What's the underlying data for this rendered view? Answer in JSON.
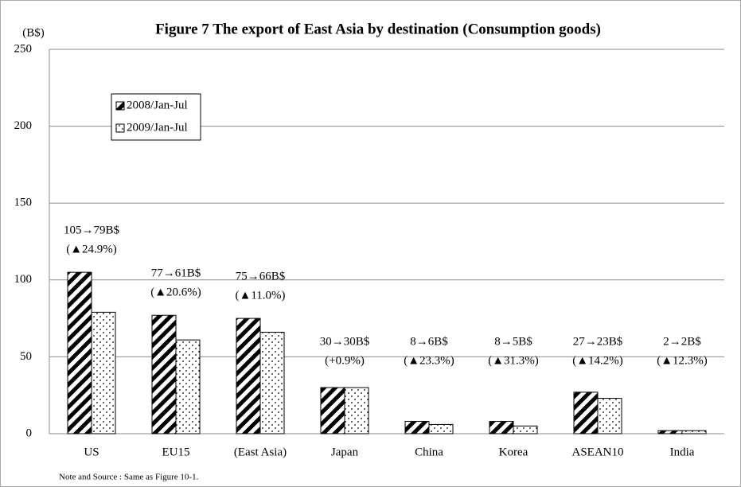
{
  "chart_data": {
    "type": "bar",
    "title": "Figure 7  The export of East Asia by destination (Consumption goods)",
    "y_label": "(B$)",
    "note": "Note and Source : Same as Figure 10-1.",
    "categories": [
      "US",
      "EU15",
      "(East Asia)",
      "Japan",
      "China",
      "Korea",
      "ASEAN10",
      "India"
    ],
    "series": [
      {
        "name": "2008/Jan-Jul",
        "color": "#000000",
        "pattern": "diagonal-stripes",
        "values": [
          105,
          77,
          75,
          30,
          8,
          8,
          27,
          2
        ]
      },
      {
        "name": "2009/Jan-Jul",
        "color": "#000000",
        "pattern": "dots",
        "values": [
          79,
          61,
          66,
          30,
          6,
          5,
          23,
          2
        ]
      }
    ],
    "annotations": [
      [
        "105→79B$",
        "(▲24.9%)"
      ],
      [
        "77→61B$",
        "(▲20.6%)"
      ],
      [
        "75→66B$",
        "(▲11.0%)"
      ],
      [
        "30→30B$",
        "(+0.9%)"
      ],
      [
        "8→6B$",
        "(▲23.3%)"
      ],
      [
        "8→5B$",
        "(▲31.3%)"
      ],
      [
        "27→23B$",
        "(▲14.2%)"
      ],
      [
        "2→2B$",
        "(▲12.3%)"
      ]
    ],
    "ylim": [
      0,
      250
    ],
    "yticks": [
      0,
      50,
      100,
      150,
      200,
      250
    ],
    "grid": true,
    "legend": "upper left"
  }
}
